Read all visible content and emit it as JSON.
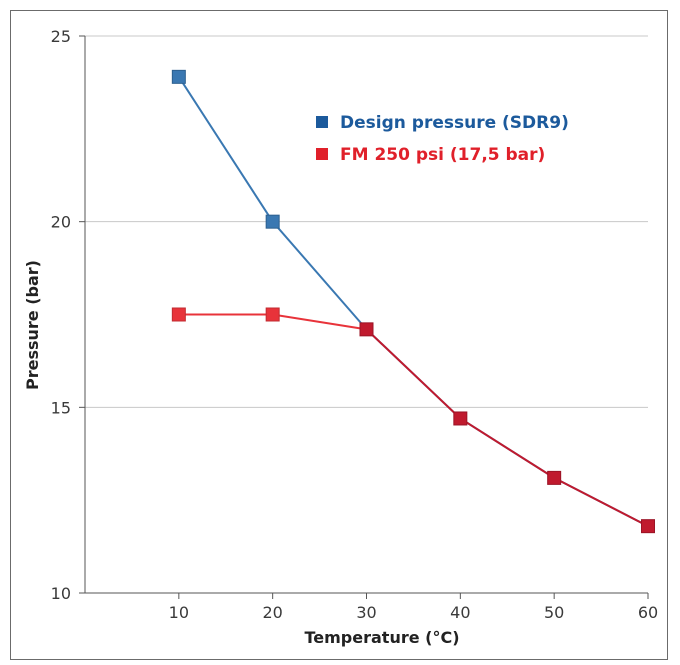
{
  "chart_data": {
    "type": "line",
    "title": "",
    "xlabel": "Temperature (°C)",
    "ylabel": "Pressure (bar)",
    "xlim": [
      0,
      60
    ],
    "ylim": [
      10,
      25
    ],
    "x_ticks": [
      10,
      20,
      30,
      40,
      50,
      60
    ],
    "y_ticks": [
      10,
      15,
      20,
      25
    ],
    "grid": "horizontal",
    "legend_position": "top-right",
    "series": [
      {
        "name": "Design pressure (SDR9)",
        "color": "#3a78b2",
        "legend_color": "#1c5a9c",
        "x": [
          10,
          20,
          30,
          40,
          50,
          60
        ],
        "values": [
          23.9,
          20.0,
          17.1,
          14.7,
          13.1,
          11.8
        ]
      },
      {
        "name": "FM 250 psi (17,5 bar)",
        "color": "#e8333a",
        "legend_color": "#e0202a",
        "overlap_color": "#c01a2e",
        "x": [
          10,
          20,
          30,
          40,
          50,
          60
        ],
        "values": [
          17.5,
          17.5,
          17.1,
          14.7,
          13.1,
          11.8
        ]
      }
    ]
  }
}
